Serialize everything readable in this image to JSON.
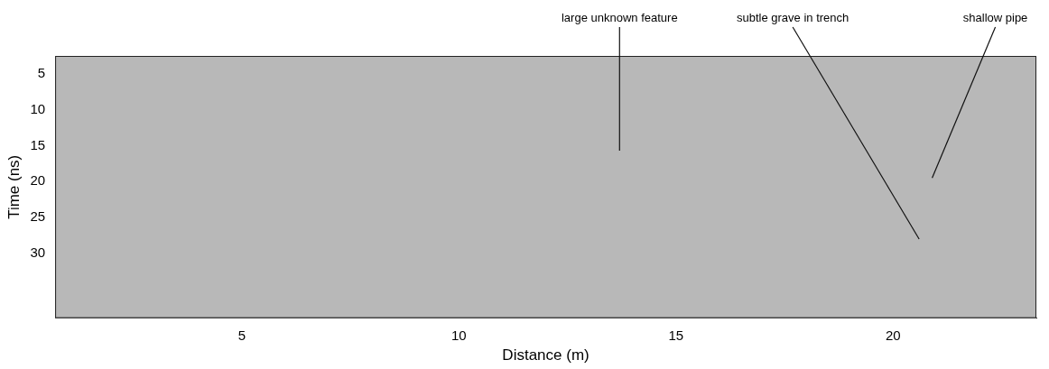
{
  "chart_data": {
    "type": "scatter",
    "x_label": "Distance (m)",
    "y_label": "Time (ns)",
    "xlim": [
      0.7,
      23.3
    ],
    "xticks": [
      5,
      10,
      15,
      20
    ],
    "ylim": [
      39,
      2.5
    ],
    "yticks": [
      5,
      10,
      15,
      20,
      25,
      30
    ],
    "grid": false,
    "annotations": [
      {
        "text": "large unknown feature",
        "x": 13.7,
        "y": 15.7
      },
      {
        "text": "subtle grave in trench",
        "x": 20.6,
        "y": 28
      },
      {
        "text": "shallow pipe",
        "x": 20.9,
        "y": 19.5
      }
    ]
  }
}
